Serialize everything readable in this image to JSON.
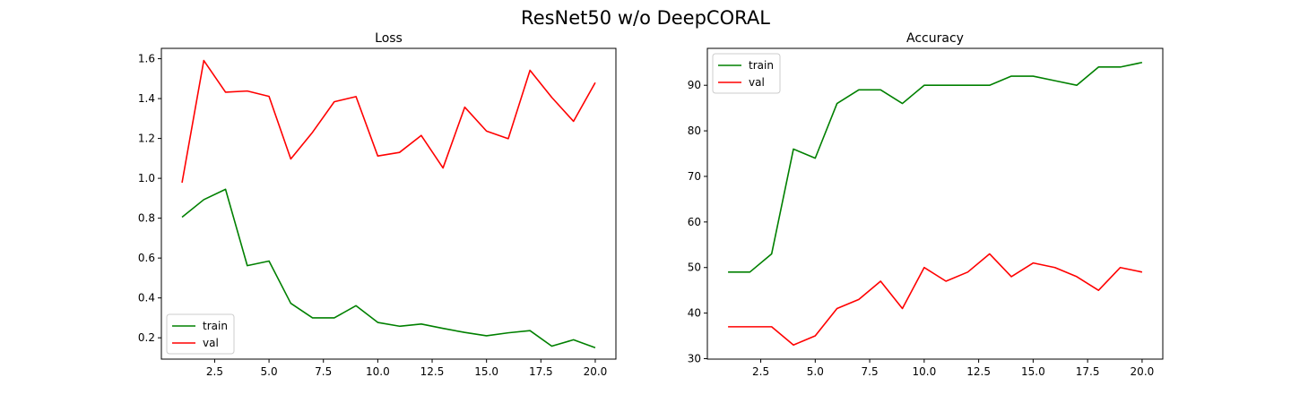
{
  "figure": {
    "title": "ResNet50 w/o DeepCORAL"
  },
  "chart_data": [
    {
      "type": "line",
      "title": "Loss",
      "xlabel": "",
      "ylabel": "",
      "x": [
        1,
        2,
        3,
        4,
        5,
        6,
        7,
        8,
        9,
        10,
        11,
        12,
        13,
        14,
        15,
        16,
        17,
        18,
        19,
        20
      ],
      "xlim": [
        0.05,
        20.95
      ],
      "ylim": [
        0.093,
        1.652
      ],
      "xticks": [
        2.5,
        5.0,
        7.5,
        10.0,
        12.5,
        15.0,
        17.5,
        20.0
      ],
      "xtick_labels": [
        "2.5",
        "5.0",
        "7.5",
        "10.0",
        "12.5",
        "15.0",
        "17.5",
        "20.0"
      ],
      "yticks": [
        0.2,
        0.4,
        0.6,
        0.8,
        1.0,
        1.2,
        1.4,
        1.6
      ],
      "ytick_labels": [
        "0.2",
        "0.4",
        "0.6",
        "0.8",
        "1.0",
        "1.2",
        "1.4",
        "1.6"
      ],
      "grid": false,
      "legend": "lower-left",
      "series": [
        {
          "name": "train",
          "color": "#008000",
          "values": [
            0.805,
            0.893,
            0.945,
            0.562,
            0.585,
            0.373,
            0.3,
            0.3,
            0.361,
            0.277,
            0.258,
            0.269,
            0.247,
            0.227,
            0.21,
            0.225,
            0.236,
            0.158,
            0.19,
            0.15
          ]
        },
        {
          "name": "val",
          "color": "#ff0000",
          "values": [
            0.978,
            1.591,
            1.432,
            1.438,
            1.411,
            1.097,
            1.231,
            1.384,
            1.41,
            1.112,
            1.13,
            1.215,
            1.052,
            1.357,
            1.237,
            1.199,
            1.542,
            1.406,
            1.286,
            1.48
          ]
        }
      ]
    },
    {
      "type": "line",
      "title": "Accuracy",
      "xlabel": "",
      "ylabel": "",
      "x": [
        1,
        2,
        3,
        4,
        5,
        6,
        7,
        8,
        9,
        10,
        11,
        12,
        13,
        14,
        15,
        16,
        17,
        18,
        19,
        20
      ],
      "xlim": [
        0.05,
        20.95
      ],
      "ylim": [
        29.9,
        98.1
      ],
      "xticks": [
        2.5,
        5.0,
        7.5,
        10.0,
        12.5,
        15.0,
        17.5,
        20.0
      ],
      "xtick_labels": [
        "2.5",
        "5.0",
        "7.5",
        "10.0",
        "12.5",
        "15.0",
        "17.5",
        "20.0"
      ],
      "yticks": [
        30,
        40,
        50,
        60,
        70,
        80,
        90
      ],
      "ytick_labels": [
        "30",
        "40",
        "50",
        "60",
        "70",
        "80",
        "90"
      ],
      "grid": false,
      "legend": "upper-left",
      "series": [
        {
          "name": "train",
          "color": "#008000",
          "values": [
            49,
            49,
            53,
            76,
            74,
            86,
            89,
            89,
            86,
            90,
            90,
            90,
            90,
            92,
            92,
            91,
            90,
            94,
            94,
            95
          ]
        },
        {
          "name": "val",
          "color": "#ff0000",
          "values": [
            37,
            37,
            37,
            33,
            35,
            41,
            43,
            47,
            41,
            50,
            47,
            49,
            53,
            48,
            51,
            50,
            48,
            45,
            50,
            49
          ]
        }
      ]
    }
  ]
}
